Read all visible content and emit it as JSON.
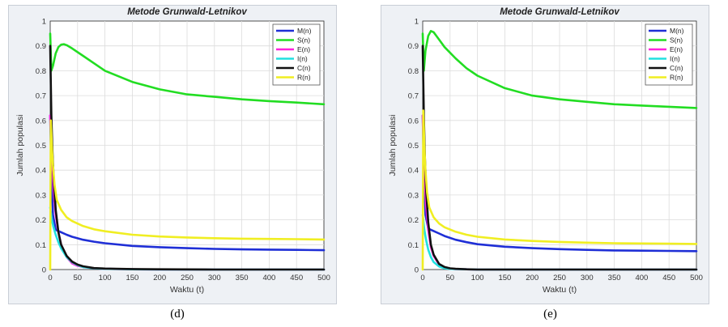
{
  "figure": {
    "captions": [
      "(d)",
      "(e)"
    ]
  },
  "chart_data": [
    {
      "type": "line",
      "title": "Metode Grunwald-Letnikov",
      "xlabel": "Waktu (t)",
      "ylabel": "Jumlah populasi",
      "xlim": [
        0,
        500
      ],
      "ylim": [
        0,
        1
      ],
      "xticks": [
        0,
        50,
        100,
        150,
        200,
        250,
        300,
        350,
        400,
        450,
        500
      ],
      "yticks": [
        0,
        0.1,
        0.2,
        0.3,
        0.4,
        0.5,
        0.6,
        0.7,
        0.8,
        0.9,
        1
      ],
      "grid": true,
      "legend_position": "top-right",
      "series": [
        {
          "name": "M(n)",
          "color": "#1f2fd6",
          "x": [
            0,
            2,
            5,
            10,
            15,
            20,
            30,
            40,
            60,
            80,
            100,
            150,
            200,
            250,
            300,
            350,
            400,
            450,
            500
          ],
          "y": [
            0.62,
            0.4,
            0.22,
            0.16,
            0.155,
            0.15,
            0.14,
            0.132,
            0.12,
            0.112,
            0.106,
            0.095,
            0.09,
            0.086,
            0.083,
            0.081,
            0.08,
            0.079,
            0.078
          ]
        },
        {
          "name": "S(n)",
          "color": "#22dd22",
          "x": [
            0,
            2,
            5,
            10,
            15,
            20,
            25,
            30,
            40,
            60,
            80,
            100,
            150,
            200,
            250,
            300,
            350,
            400,
            450,
            500
          ],
          "y": [
            0.95,
            0.8,
            0.82,
            0.87,
            0.895,
            0.905,
            0.907,
            0.903,
            0.89,
            0.86,
            0.83,
            0.8,
            0.755,
            0.725,
            0.705,
            0.695,
            0.685,
            0.678,
            0.672,
            0.665
          ]
        },
        {
          "name": "E(n)",
          "color": "#ff22dd",
          "x": [
            0,
            3,
            6,
            10,
            15,
            20,
            30,
            40,
            50,
            60,
            80,
            100,
            150,
            200,
            300,
            400,
            500
          ],
          "y": [
            0.62,
            0.45,
            0.32,
            0.22,
            0.15,
            0.1,
            0.05,
            0.025,
            0.015,
            0.01,
            0.005,
            0.003,
            0.001,
            0.0,
            0.0,
            0.0,
            0.0
          ]
        },
        {
          "name": "I(n)",
          "color": "#22e0e0",
          "x": [
            0,
            3,
            6,
            10,
            15,
            20,
            30,
            40,
            50,
            60,
            80,
            100,
            150,
            200,
            300,
            400,
            500
          ],
          "y": [
            0.25,
            0.2,
            0.17,
            0.14,
            0.11,
            0.085,
            0.05,
            0.03,
            0.018,
            0.01,
            0.005,
            0.003,
            0.001,
            0.0,
            0.0,
            0.0,
            0.0
          ]
        },
        {
          "name": "C(n)",
          "color": "#111111",
          "x": [
            0,
            2,
            4,
            6,
            10,
            15,
            20,
            30,
            40,
            50,
            60,
            80,
            100,
            150,
            200,
            300,
            400,
            500
          ],
          "y": [
            0.9,
            0.62,
            0.48,
            0.38,
            0.24,
            0.15,
            0.1,
            0.055,
            0.032,
            0.02,
            0.013,
            0.006,
            0.004,
            0.002,
            0.001,
            0.0,
            0.0,
            0.0
          ]
        },
        {
          "name": "R(n)",
          "color": "#f0ee22",
          "x": [
            0,
            1,
            2,
            3,
            5,
            8,
            12,
            20,
            30,
            40,
            60,
            80,
            100,
            150,
            200,
            250,
            300,
            350,
            400,
            450,
            500
          ],
          "y": [
            0.0,
            0.6,
            0.55,
            0.5,
            0.42,
            0.34,
            0.28,
            0.24,
            0.21,
            0.195,
            0.175,
            0.162,
            0.154,
            0.14,
            0.133,
            0.129,
            0.126,
            0.124,
            0.123,
            0.122,
            0.121
          ]
        }
      ]
    },
    {
      "type": "line",
      "title": "Metode Grunwald-Letnikov",
      "xlabel": "Waktu (t)",
      "ylabel": "Jumlah populasi",
      "xlim": [
        0,
        500
      ],
      "ylim": [
        0,
        1
      ],
      "xticks": [
        0,
        50,
        100,
        150,
        200,
        250,
        300,
        350,
        400,
        450,
        500
      ],
      "yticks": [
        0,
        0.1,
        0.2,
        0.3,
        0.4,
        0.5,
        0.6,
        0.7,
        0.8,
        0.9,
        1
      ],
      "grid": true,
      "legend_position": "top-right",
      "series": [
        {
          "name": "M(n)",
          "color": "#1f2fd6",
          "x": [
            0,
            2,
            5,
            10,
            15,
            20,
            30,
            40,
            60,
            80,
            100,
            150,
            200,
            250,
            300,
            350,
            400,
            450,
            500
          ],
          "y": [
            0.62,
            0.4,
            0.22,
            0.165,
            0.16,
            0.155,
            0.145,
            0.135,
            0.12,
            0.11,
            0.102,
            0.092,
            0.086,
            0.082,
            0.079,
            0.077,
            0.076,
            0.075,
            0.074
          ]
        },
        {
          "name": "S(n)",
          "color": "#22dd22",
          "x": [
            0,
            2,
            5,
            10,
            15,
            20,
            25,
            30,
            40,
            60,
            80,
            100,
            150,
            200,
            250,
            300,
            350,
            400,
            450,
            500
          ],
          "y": [
            0.95,
            0.8,
            0.88,
            0.94,
            0.96,
            0.955,
            0.94,
            0.925,
            0.895,
            0.85,
            0.81,
            0.78,
            0.73,
            0.7,
            0.685,
            0.675,
            0.665,
            0.66,
            0.655,
            0.65
          ]
        },
        {
          "name": "E(n)",
          "color": "#ff22dd",
          "x": [
            0,
            3,
            6,
            10,
            15,
            20,
            30,
            40,
            50,
            60,
            80,
            100,
            150,
            200,
            300,
            400,
            500
          ],
          "y": [
            0.62,
            0.4,
            0.26,
            0.16,
            0.09,
            0.055,
            0.02,
            0.008,
            0.004,
            0.002,
            0.001,
            0.0,
            0.0,
            0.0,
            0.0,
            0.0,
            0.0
          ]
        },
        {
          "name": "I(n)",
          "color": "#22e0e0",
          "x": [
            0,
            3,
            6,
            10,
            15,
            20,
            30,
            40,
            50,
            60,
            80,
            100,
            150,
            200,
            300,
            400,
            500
          ],
          "y": [
            0.22,
            0.16,
            0.12,
            0.08,
            0.05,
            0.03,
            0.012,
            0.005,
            0.003,
            0.002,
            0.001,
            0.0,
            0.0,
            0.0,
            0.0,
            0.0,
            0.0
          ]
        },
        {
          "name": "C(n)",
          "color": "#111111",
          "x": [
            0,
            2,
            4,
            6,
            10,
            15,
            20,
            30,
            40,
            50,
            60,
            80,
            100,
            150,
            200,
            300,
            400,
            500
          ],
          "y": [
            0.9,
            0.62,
            0.45,
            0.33,
            0.19,
            0.1,
            0.06,
            0.022,
            0.01,
            0.005,
            0.003,
            0.001,
            0.0,
            0.0,
            0.0,
            0.0,
            0.0,
            0.0
          ]
        },
        {
          "name": "R(n)",
          "color": "#f0ee22",
          "x": [
            0,
            1,
            2,
            3,
            5,
            8,
            12,
            20,
            30,
            40,
            60,
            80,
            100,
            150,
            200,
            250,
            300,
            350,
            400,
            450,
            500
          ],
          "y": [
            0.0,
            0.64,
            0.58,
            0.5,
            0.4,
            0.31,
            0.25,
            0.21,
            0.185,
            0.17,
            0.152,
            0.14,
            0.132,
            0.121,
            0.115,
            0.111,
            0.108,
            0.106,
            0.105,
            0.104,
            0.103
          ]
        }
      ]
    }
  ]
}
